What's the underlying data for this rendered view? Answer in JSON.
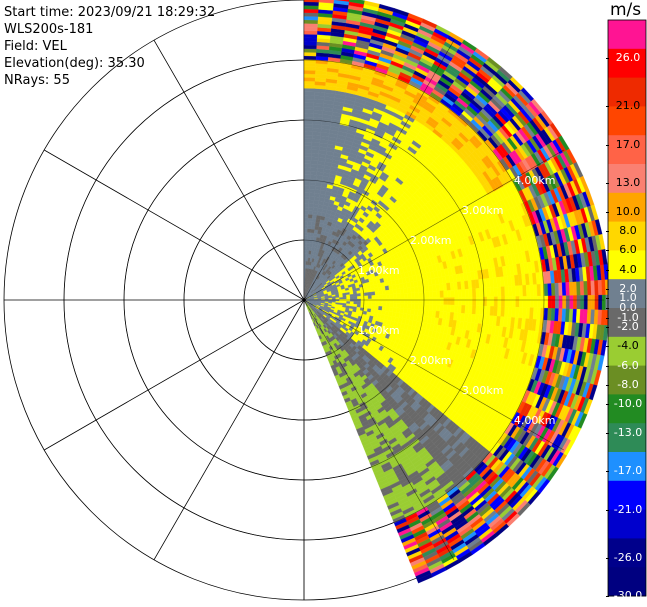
{
  "header": {
    "start_time": "Start time: 2023/09/21 18:29:32",
    "instrument": "WLS200s-181",
    "field": "Field: VEL",
    "elevation": "Elevation(deg): 35.30",
    "nrays": "NRays: 55"
  },
  "chart_data": {
    "type": "heatmap",
    "projection": "polar-ppi",
    "field": "VEL",
    "units": "m/s",
    "nrays": 55,
    "azimuth_range_deg": [
      0,
      158
    ],
    "range_ring_labels": [
      "1.00km",
      "2.00km",
      "3.00km",
      "4.00km"
    ],
    "colorbar": {
      "title": "m/s",
      "range": [
        -30.0,
        30.0
      ],
      "tick_labels": [
        "26.0",
        "21.0",
        "17.0",
        "13.0",
        "10.0",
        "8.0",
        "6.0",
        "4.0",
        "2.0",
        "1.0",
        "0.0",
        "-1.0",
        "-2.0",
        "-4.0",
        "-6.0",
        "-8.0",
        "-10.0",
        "-13.0",
        "-17.0",
        "-21.0",
        "-26.0",
        "-30.0"
      ],
      "tick_values": [
        26,
        21,
        17,
        13,
        10,
        8,
        6,
        4,
        2,
        1,
        0,
        -1,
        -2,
        -4,
        -6,
        -8,
        -10,
        -13,
        -17,
        -21,
        -26,
        -30
      ],
      "colors": [
        "#ff1493",
        "#ff0000",
        "#ee2a00",
        "#ff4500",
        "#ff6347",
        "#fa8072",
        "#ffa500",
        "#ffd700",
        "#ffff00",
        "#708090",
        "#696969",
        "#9acd32",
        "#6b8e23",
        "#228b22",
        "#2e8b57",
        "#1e90ff",
        "#0000ff",
        "#0000cd",
        "#00008b",
        "#000080"
      ]
    }
  }
}
